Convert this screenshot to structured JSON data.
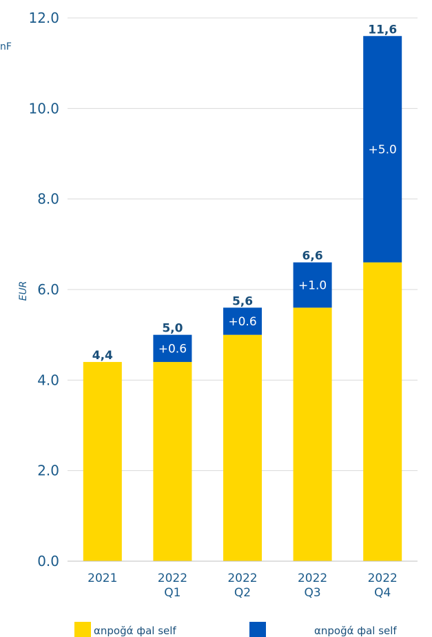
{
  "chart_data": {
    "type": "bar",
    "stacked": true,
    "categories": [
      [
        "2021"
      ],
      [
        "2022",
        "Q1"
      ],
      [
        "2022",
        "Q2"
      ],
      [
        "2022",
        "Q3"
      ],
      [
        "2022",
        "Q4"
      ]
    ],
    "series": [
      {
        "name": "αnpoğά фal self",
        "color": "#FFD700",
        "values": [
          4.4,
          4.4,
          5.0,
          5.6,
          6.6
        ]
      },
      {
        "name": "αnpoğά фal self",
        "color": "#0055BB",
        "values": [
          0,
          0.6,
          0.6,
          1.0,
          5.0
        ]
      }
    ],
    "totals": [
      "4,4",
      "5,0",
      "5,6",
      "6,6",
      "11,6"
    ],
    "increments": [
      "",
      "+0.6",
      "+0.6",
      "+1.0",
      "+5.0"
    ],
    "yticks": [
      "0.0",
      "2.0",
      "4.0",
      "6.0",
      "8.0",
      "10.0",
      "12.0"
    ],
    "ylim": [
      0,
      12
    ],
    "ylabel": "EUR",
    "cut_text": "nF",
    "grid": true,
    "legend_position": "bottom",
    "axis_text_color": "#1a5a8a",
    "grid_color": "#d9d9d9"
  }
}
